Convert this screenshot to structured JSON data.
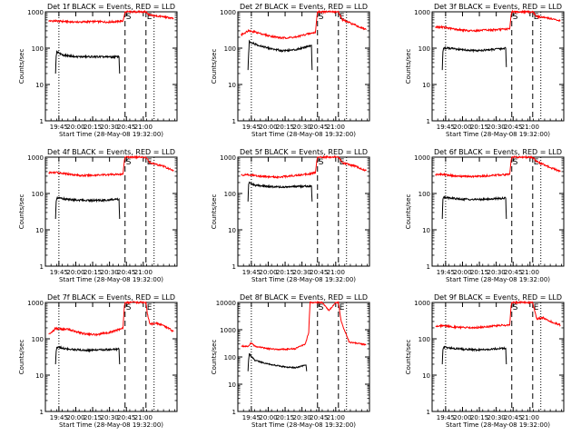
{
  "figure": {
    "background": "#ffffff",
    "axis_color": "#000000",
    "events_color": "#000000",
    "lld_color": "#ff0000"
  },
  "chart_data": [
    {
      "type": "line",
      "yscale": "log",
      "title": "Det 1f BLACK = Events, RED = LLD",
      "xlabel": "Start Time (28-May-08 19:32:00)",
      "ylabel": "Counts/sec",
      "xlim": [
        19.55,
        21.5
      ],
      "ylim": [
        1,
        1000
      ],
      "xticks": [
        "19:45",
        "20:00",
        "20:15",
        "20:30",
        "20:45",
        "21:00"
      ],
      "xtick_values": [
        19.75,
        20.0,
        20.25,
        20.5,
        20.75,
        21.0
      ],
      "yticks": [
        "1",
        "10",
        "100",
        "1000"
      ],
      "markers": [
        {
          "x": 19.75,
          "style": "dotted",
          "label": ""
        },
        {
          "x": 20.73,
          "style": "dashed",
          "label": "S"
        },
        {
          "x": 21.04,
          "style": "dashed",
          "label": "E"
        },
        {
          "x": 21.16,
          "style": "dotted",
          "label": ""
        }
      ],
      "series": [
        {
          "name": "LLD",
          "color": "#ff0000",
          "x": [
            19.6,
            19.7,
            20.0,
            20.3,
            20.5,
            20.7,
            20.72,
            20.73,
            20.74,
            21.04,
            21.1,
            21.3,
            21.45
          ],
          "y": [
            560,
            560,
            520,
            540,
            520,
            560,
            800,
            1000,
            1000,
            1000,
            800,
            730,
            650
          ]
        },
        {
          "name": "Events",
          "color": "#000000",
          "x": [
            19.7,
            19.71,
            19.72,
            19.8,
            20.0,
            20.3,
            20.5,
            20.64,
            20.65
          ],
          "y": [
            20,
            60,
            80,
            65,
            58,
            58,
            57,
            58,
            20
          ]
        }
      ]
    },
    {
      "type": "line",
      "yscale": "log",
      "title": "Det 2f BLACK = Events, RED = LLD",
      "xlabel": "Start Time (28-May-08 19:32:00)",
      "ylabel": "Counts/sec",
      "xlim": [
        19.55,
        21.5
      ],
      "ylim": [
        1,
        1000
      ],
      "xticks": [
        "19:45",
        "20:00",
        "20:15",
        "20:30",
        "20:45",
        "21:00"
      ],
      "xtick_values": [
        19.75,
        20.0,
        20.25,
        20.5,
        20.75,
        21.0
      ],
      "yticks": [
        "1",
        "10",
        "100",
        "1000"
      ],
      "markers": [
        {
          "x": 19.75,
          "style": "dotted",
          "label": ""
        },
        {
          "x": 20.73,
          "style": "dashed",
          "label": "S"
        },
        {
          "x": 21.04,
          "style": "dashed",
          "label": "E"
        },
        {
          "x": 21.16,
          "style": "dotted",
          "label": ""
        }
      ],
      "series": [
        {
          "name": "LLD",
          "color": "#ff0000",
          "x": [
            19.6,
            19.7,
            19.8,
            20.0,
            20.2,
            20.4,
            20.6,
            20.7,
            20.72,
            20.73,
            20.74,
            21.04,
            21.1,
            21.3,
            21.45
          ],
          "y": [
            230,
            300,
            280,
            220,
            190,
            200,
            250,
            270,
            700,
            1000,
            1000,
            1000,
            600,
            420,
            320
          ]
        },
        {
          "name": "Events",
          "color": "#000000",
          "x": [
            19.7,
            19.71,
            19.72,
            19.8,
            20.0,
            20.2,
            20.4,
            20.6,
            20.64,
            20.65
          ],
          "y": [
            25,
            70,
            150,
            130,
            100,
            85,
            90,
            115,
            120,
            25
          ]
        }
      ]
    },
    {
      "type": "line",
      "yscale": "log",
      "title": "Det 3f BLACK = Events, RED = LLD",
      "xlabel": "Start Time (28-May-08 19:32:00)",
      "ylabel": "Counts/sec",
      "xlim": [
        19.55,
        21.5
      ],
      "ylim": [
        1,
        1000
      ],
      "xticks": [
        "19:45",
        "20:00",
        "20:15",
        "20:30",
        "20:45",
        "21:00"
      ],
      "xtick_values": [
        19.75,
        20.0,
        20.25,
        20.5,
        20.75,
        21.0
      ],
      "yticks": [
        "1",
        "10",
        "100",
        "1000"
      ],
      "markers": [
        {
          "x": 19.75,
          "style": "dotted",
          "label": ""
        },
        {
          "x": 20.73,
          "style": "dashed",
          "label": "S"
        },
        {
          "x": 21.04,
          "style": "dashed",
          "label": "E"
        },
        {
          "x": 21.16,
          "style": "dotted",
          "label": ""
        }
      ],
      "series": [
        {
          "name": "LLD",
          "color": "#ff0000",
          "x": [
            19.6,
            19.7,
            19.9,
            20.1,
            20.3,
            20.5,
            20.7,
            20.72,
            20.73,
            20.74,
            21.04,
            21.1,
            21.3,
            21.45
          ],
          "y": [
            380,
            380,
            330,
            300,
            310,
            320,
            340,
            800,
            1000,
            1000,
            1000,
            750,
            650,
            560
          ]
        },
        {
          "name": "Events",
          "color": "#000000",
          "x": [
            19.7,
            19.71,
            19.72,
            19.8,
            20.0,
            20.2,
            20.4,
            20.64,
            20.65
          ],
          "y": [
            25,
            80,
            100,
            100,
            90,
            85,
            90,
            100,
            30
          ]
        }
      ]
    },
    {
      "type": "line",
      "yscale": "log",
      "title": "Det 4f BLACK = Events, RED = LLD",
      "xlabel": "Start Time (28-May-08 19:32:00)",
      "ylabel": "Counts/sec",
      "xlim": [
        19.55,
        21.5
      ],
      "ylim": [
        1,
        1000
      ],
      "xticks": [
        "19:45",
        "20:00",
        "20:15",
        "20:30",
        "20:45",
        "21:00"
      ],
      "xtick_values": [
        19.75,
        20.0,
        20.25,
        20.5,
        20.75,
        21.0
      ],
      "yticks": [
        "1",
        "10",
        "100",
        "1000"
      ],
      "markers": [
        {
          "x": 19.75,
          "style": "dotted",
          "label": ""
        },
        {
          "x": 20.73,
          "style": "dashed",
          "label": "S"
        },
        {
          "x": 21.04,
          "style": "dashed",
          "label": "E"
        },
        {
          "x": 21.16,
          "style": "dotted",
          "label": ""
        }
      ],
      "series": [
        {
          "name": "LLD",
          "color": "#ff0000",
          "x": [
            19.6,
            19.7,
            19.9,
            20.1,
            20.3,
            20.5,
            20.7,
            20.72,
            20.73,
            20.74,
            21.04,
            21.1,
            21.3,
            21.45
          ],
          "y": [
            370,
            380,
            340,
            310,
            320,
            330,
            340,
            800,
            1000,
            1000,
            1000,
            700,
            560,
            420
          ]
        },
        {
          "name": "Events",
          "color": "#000000",
          "x": [
            19.7,
            19.71,
            19.72,
            19.8,
            20.0,
            20.2,
            20.4,
            20.64,
            20.65
          ],
          "y": [
            20,
            60,
            75,
            72,
            66,
            64,
            65,
            70,
            20
          ]
        }
      ]
    },
    {
      "type": "line",
      "yscale": "log",
      "title": "Det 5f BLACK = Events, RED = LLD",
      "xlabel": "Start Time (28-May-08 19:32:00)",
      "ylabel": "Counts/sec",
      "xlim": [
        19.55,
        21.5
      ],
      "ylim": [
        1,
        1000
      ],
      "xticks": [
        "19:45",
        "20:00",
        "20:15",
        "20:30",
        "20:45",
        "21:00"
      ],
      "xtick_values": [
        19.75,
        20.0,
        20.25,
        20.5,
        20.75,
        21.0
      ],
      "yticks": [
        "1",
        "10",
        "100",
        "1000"
      ],
      "markers": [
        {
          "x": 19.75,
          "style": "dotted",
          "label": ""
        },
        {
          "x": 20.73,
          "style": "dashed",
          "label": "S"
        },
        {
          "x": 21.04,
          "style": "dashed",
          "label": "E"
        },
        {
          "x": 21.16,
          "style": "dotted",
          "label": ""
        }
      ],
      "series": [
        {
          "name": "LLD",
          "color": "#ff0000",
          "x": [
            19.6,
            19.7,
            19.9,
            20.1,
            20.3,
            20.5,
            20.7,
            20.72,
            20.73,
            20.74,
            21.04,
            21.1,
            21.3,
            21.45
          ],
          "y": [
            320,
            330,
            300,
            280,
            300,
            330,
            370,
            800,
            1000,
            1000,
            1000,
            700,
            560,
            420
          ]
        },
        {
          "name": "Events",
          "color": "#000000",
          "x": [
            19.7,
            19.71,
            19.72,
            19.8,
            20.0,
            20.2,
            20.4,
            20.64,
            20.65
          ],
          "y": [
            60,
            180,
            200,
            170,
            155,
            150,
            155,
            160,
            60
          ]
        }
      ]
    },
    {
      "type": "line",
      "yscale": "log",
      "title": "Det 6f BLACK = Events, RED = LLD",
      "xlabel": "Start Time (28-May-08 19:32:00)",
      "ylabel": "Counts/sec",
      "xlim": [
        19.55,
        21.5
      ],
      "ylim": [
        1,
        1000
      ],
      "xticks": [
        "19:45",
        "20:00",
        "20:15",
        "20:30",
        "20:45",
        "21:00"
      ],
      "xtick_values": [
        19.75,
        20.0,
        20.25,
        20.5,
        20.75,
        21.0
      ],
      "yticks": [
        "1",
        "10",
        "100",
        "1000"
      ],
      "markers": [
        {
          "x": 19.75,
          "style": "dotted",
          "label": ""
        },
        {
          "x": 20.73,
          "style": "dashed",
          "label": "S"
        },
        {
          "x": 21.04,
          "style": "dashed",
          "label": "E"
        },
        {
          "x": 21.16,
          "style": "dotted",
          "label": ""
        }
      ],
      "series": [
        {
          "name": "LLD",
          "color": "#ff0000",
          "x": [
            19.6,
            19.7,
            19.9,
            20.1,
            20.3,
            20.5,
            20.7,
            20.72,
            20.73,
            20.74,
            21.04,
            21.1,
            21.3,
            21.45
          ],
          "y": [
            330,
            340,
            300,
            290,
            300,
            320,
            340,
            800,
            1000,
            1000,
            1000,
            750,
            520,
            400
          ]
        },
        {
          "name": "Events",
          "color": "#000000",
          "x": [
            19.7,
            19.71,
            19.72,
            19.8,
            20.0,
            20.2,
            20.4,
            20.64,
            20.65
          ],
          "y": [
            20,
            70,
            80,
            75,
            70,
            68,
            70,
            75,
            20
          ]
        }
      ]
    },
    {
      "type": "line",
      "yscale": "log",
      "title": "Det 7f BLACK = Events, RED = LLD",
      "xlabel": "Start Time (28-May-08 19:32:00)",
      "ylabel": "Counts/sec",
      "xlim": [
        19.55,
        21.5
      ],
      "ylim": [
        1,
        1000
      ],
      "xticks": [
        "19:45",
        "20:00",
        "20:15",
        "20:30",
        "20:45",
        "21:00"
      ],
      "xtick_values": [
        19.75,
        20.0,
        20.25,
        20.5,
        20.75,
        21.0
      ],
      "yticks": [
        "1",
        "10",
        "100",
        "1000"
      ],
      "markers": [
        {
          "x": 19.75,
          "style": "dotted",
          "label": ""
        },
        {
          "x": 20.73,
          "style": "dashed",
          "label": "S"
        },
        {
          "x": 21.04,
          "style": "dashed",
          "label": "E"
        },
        {
          "x": 21.16,
          "style": "dotted",
          "label": ""
        }
      ],
      "series": [
        {
          "name": "LLD",
          "color": "#ff0000",
          "x": [
            19.6,
            19.7,
            19.9,
            20.1,
            20.3,
            20.5,
            20.6,
            20.7,
            20.72,
            20.73,
            20.74,
            21.04,
            21.06,
            21.1,
            21.2,
            21.3,
            21.45
          ],
          "y": [
            130,
            190,
            180,
            140,
            130,
            150,
            170,
            200,
            800,
            1000,
            1000,
            1000,
            500,
            250,
            270,
            230,
            160
          ]
        },
        {
          "name": "Events",
          "color": "#000000",
          "x": [
            19.7,
            19.71,
            19.72,
            19.8,
            20.0,
            20.2,
            20.4,
            20.64,
            20.65
          ],
          "y": [
            20,
            45,
            60,
            55,
            50,
            48,
            50,
            52,
            20
          ]
        }
      ]
    },
    {
      "type": "line",
      "yscale": "log",
      "title": "Det 8f BLACK = Events, RED = LLD",
      "xlabel": "Start Time (28-May-08 19:32:00)",
      "ylabel": "Counts/sec",
      "xlim": [
        19.55,
        21.5
      ],
      "ylim": [
        1,
        10000
      ],
      "xticks": [
        "19:45",
        "20:00",
        "20:15",
        "20:30",
        "20:45",
        "21:00"
      ],
      "xtick_values": [
        19.75,
        20.0,
        20.25,
        20.5,
        20.75,
        21.0
      ],
      "yticks": [
        "1",
        "10",
        "100",
        "1000",
        "10000"
      ],
      "markers": [
        {
          "x": 19.75,
          "style": "dotted",
          "label": ""
        },
        {
          "x": 20.73,
          "style": "dashed",
          "label": "S"
        },
        {
          "x": 21.04,
          "style": "dashed",
          "label": "E"
        },
        {
          "x": 21.16,
          "style": "dotted",
          "label": ""
        }
      ],
      "series": [
        {
          "name": "LLD",
          "color": "#ff0000",
          "x": [
            19.6,
            19.7,
            19.75,
            19.8,
            20.0,
            20.2,
            20.4,
            20.55,
            20.6,
            20.61,
            20.62,
            20.7,
            20.8,
            20.9,
            21.0,
            21.04,
            21.08,
            21.2,
            21.45
          ],
          "y": [
            250,
            250,
            330,
            250,
            200,
            190,
            200,
            300,
            800,
            3000,
            10000,
            10000,
            10000,
            5000,
            10000,
            10000,
            2000,
            350,
            280
          ]
        },
        {
          "name": "Events",
          "color": "#000000",
          "x": [
            19.7,
            19.71,
            19.72,
            19.76,
            19.8,
            20.0,
            20.2,
            20.4,
            20.56,
            20.57
          ],
          "y": [
            30,
            80,
            130,
            100,
            75,
            55,
            45,
            40,
            50,
            30
          ]
        }
      ]
    },
    {
      "type": "line",
      "yscale": "log",
      "title": "Det 9f BLACK = Events, RED = LLD",
      "xlabel": "Start Time (28-May-08 19:32:00)",
      "ylabel": "Counts/sec",
      "xlim": [
        19.55,
        21.5
      ],
      "ylim": [
        1,
        1000
      ],
      "xticks": [
        "19:45",
        "20:00",
        "20:15",
        "20:30",
        "20:45",
        "21:00"
      ],
      "xtick_values": [
        19.75,
        20.0,
        20.25,
        20.5,
        20.75,
        21.0
      ],
      "yticks": [
        "1",
        "10",
        "100",
        "1000"
      ],
      "markers": [
        {
          "x": 19.75,
          "style": "dotted",
          "label": ""
        },
        {
          "x": 20.73,
          "style": "dashed",
          "label": "S"
        },
        {
          "x": 21.04,
          "style": "dashed",
          "label": "E"
        },
        {
          "x": 21.16,
          "style": "dotted",
          "label": ""
        }
      ],
      "series": [
        {
          "name": "LLD",
          "color": "#ff0000",
          "x": [
            19.6,
            19.7,
            19.9,
            20.1,
            20.3,
            20.5,
            20.7,
            20.72,
            20.73,
            20.74,
            21.04,
            21.08,
            21.1,
            21.2,
            21.3,
            21.45
          ],
          "y": [
            220,
            230,
            210,
            200,
            210,
            230,
            240,
            800,
            1000,
            1000,
            1000,
            500,
            350,
            380,
            300,
            240
          ]
        },
        {
          "name": "Events",
          "color": "#000000",
          "x": [
            19.7,
            19.71,
            19.72,
            19.8,
            20.0,
            20.2,
            20.4,
            20.64,
            20.65
          ],
          "y": [
            20,
            50,
            60,
            56,
            52,
            50,
            52,
            55,
            20
          ]
        }
      ]
    }
  ]
}
